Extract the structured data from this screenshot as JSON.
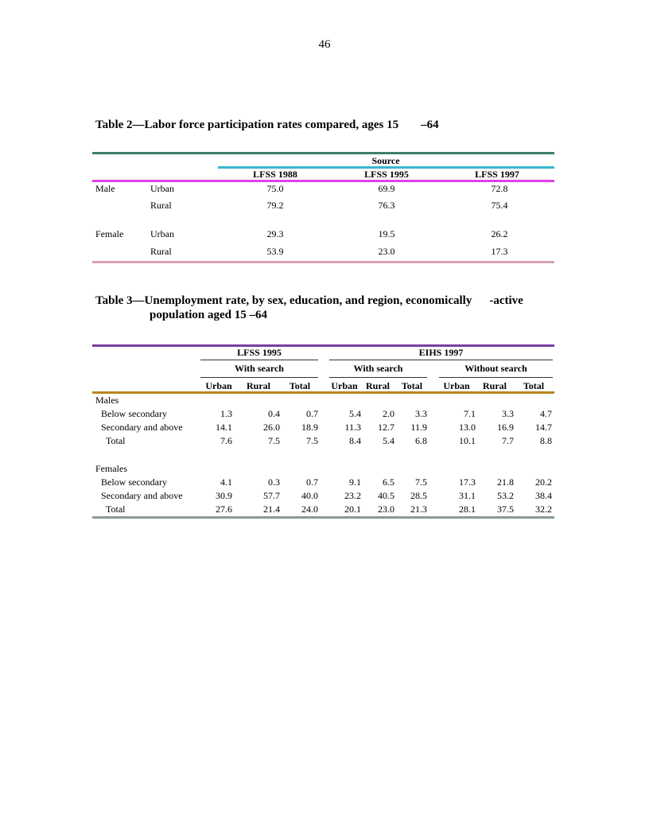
{
  "page_number": "46",
  "table2": {
    "label": "Table 2",
    "dash": "—",
    "title": "Labor force participation rates compared, ages 15",
    "title_end": "–64",
    "source_header": "Source",
    "columns": [
      "LFSS 1988",
      "LFSS 1995",
      "LFSS 1997"
    ],
    "rows": [
      {
        "sex": "Male",
        "area": "Urban",
        "values": [
          "75.0",
          "69.9",
          "72.8"
        ]
      },
      {
        "sex": "",
        "area": "Rural",
        "values": [
          "79.2",
          "76.3",
          "75.4"
        ]
      },
      {
        "sex": "Female",
        "area": "Urban",
        "values": [
          "29.3",
          "19.5",
          "26.2"
        ]
      },
      {
        "sex": "",
        "area": "Rural",
        "values": [
          "53.9",
          "23.0",
          "17.3"
        ]
      }
    ],
    "colors": {
      "top": "#3f7f6a",
      "source": "#39b7cf",
      "header": "#e040e8",
      "bottom": "#d9a0b8"
    }
  },
  "table3": {
    "label": "Table 3",
    "dash": "—",
    "title": "Unemployment rate, by sex, education, and region, economically",
    "title_end": "-active",
    "title_line2": "population aged 15  –64",
    "group1": "LFSS 1995",
    "group2": "EIHS 1997",
    "sub1": "With search",
    "sub2": "With search",
    "sub3": "Without search",
    "col_headers": [
      "Urban",
      "Rural",
      "Total",
      "Urban",
      "Rural",
      "Total",
      "Urban",
      "Rural",
      "Total"
    ],
    "sections": [
      {
        "name": "Males",
        "rows": [
          {
            "label": "Below secondary",
            "values": [
              "1.3",
              "0.4",
              "0.7",
              "5.4",
              "2.0",
              "3.3",
              "7.1",
              "3.3",
              "4.7"
            ]
          },
          {
            "label": "Secondary and above",
            "values": [
              "14.1",
              "26.0",
              "18.9",
              "11.3",
              "12.7",
              "11.9",
              "13.0",
              "16.9",
              "14.7"
            ]
          },
          {
            "label": "Total",
            "values": [
              "7.6",
              "7.5",
              "7.5",
              "8.4",
              "5.4",
              "6.8",
              "10.1",
              "7.7",
              "8.8"
            ]
          }
        ]
      },
      {
        "name": "Females",
        "rows": [
          {
            "label": "Below secondary",
            "values": [
              "4.1",
              "0.3",
              "0.7",
              "9.1",
              "6.5",
              "7.5",
              "17.3",
              "21.8",
              "20.2"
            ]
          },
          {
            "label": "Secondary and above",
            "values": [
              "30.9",
              "57.7",
              "40.0",
              "23.2",
              "40.5",
              "28.5",
              "31.1",
              "53.2",
              "38.4"
            ]
          },
          {
            "label": "Total",
            "values": [
              "27.6",
              "21.4",
              "24.0",
              "20.1",
              "23.0",
              "21.3",
              "28.1",
              "37.5",
              "32.2"
            ]
          }
        ]
      }
    ],
    "colors": {
      "top": "#7a3f9e",
      "sub": "#333333",
      "header": "#b8861a",
      "bottom": "#8a9a94"
    }
  }
}
